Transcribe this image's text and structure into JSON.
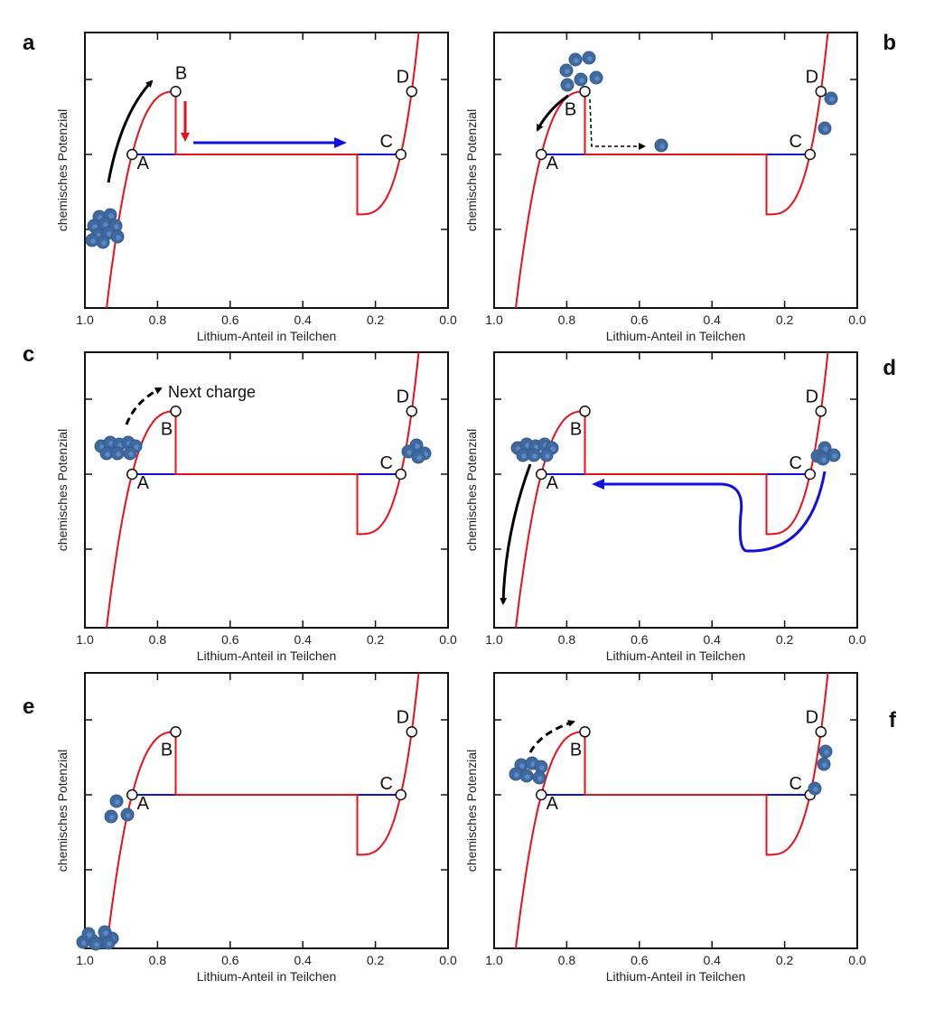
{
  "colors": {
    "curve": "#e8101a",
    "tie_line": "#1010e0",
    "arrow": "#000000",
    "particle": "#3f6aa0",
    "particle_highlight": "#5b89c2"
  },
  "chart_data": {
    "type": "line",
    "xlabel": "Lithium-Anteil in Teilchen",
    "ylabel": "chemisches Potenzial",
    "x_ticks": [
      "1.0",
      "0.8",
      "0.6",
      "0.4",
      "0.2",
      "0.0"
    ],
    "xlim": [
      1.0,
      0.0
    ],
    "x_reversed": true,
    "points": [
      {
        "label": "A",
        "x": 0.87
      },
      {
        "label": "B",
        "x": 0.75
      },
      {
        "label": "C",
        "x": 0.13
      },
      {
        "label": "D",
        "x": 0.1
      }
    ],
    "plateau_range": [
      0.75,
      0.25
    ]
  },
  "panels": [
    {
      "letter": "a"
    },
    {
      "letter": "b"
    },
    {
      "letter": "c",
      "annotation": "Next charge"
    },
    {
      "letter": "d"
    },
    {
      "letter": "e"
    },
    {
      "letter": "f"
    }
  ]
}
